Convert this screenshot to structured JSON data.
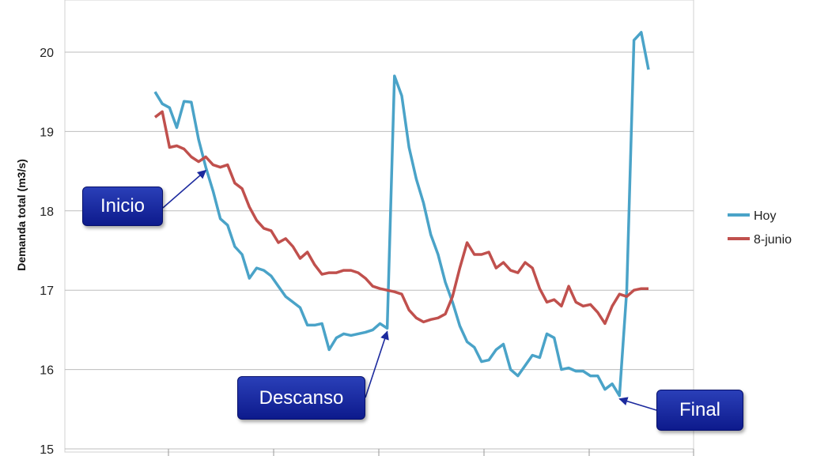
{
  "chart_data": {
    "type": "line",
    "ylabel": "Demanda total (m3/s)",
    "xlabel": "",
    "ylim": [
      15,
      20.6
    ],
    "yticks": [
      15,
      16,
      17,
      18,
      19,
      20
    ],
    "grid": true,
    "legend_position": "right",
    "series": [
      {
        "name": "Hoy",
        "color": "#4aa3c8",
        "values": [
          19.5,
          19.35,
          19.3,
          19.05,
          19.38,
          19.37,
          18.9,
          18.55,
          18.25,
          17.9,
          17.82,
          17.55,
          17.45,
          17.15,
          17.28,
          17.25,
          17.18,
          17.05,
          16.92,
          16.85,
          16.78,
          16.56,
          16.56,
          16.58,
          16.25,
          16.4,
          16.45,
          16.43,
          16.45,
          16.47,
          16.5,
          16.58,
          16.52,
          19.7,
          19.45,
          18.8,
          18.4,
          18.1,
          17.7,
          17.45,
          17.1,
          16.85,
          16.55,
          16.35,
          16.28,
          16.1,
          16.12,
          16.25,
          16.32,
          16.0,
          15.92,
          16.05,
          16.18,
          16.15,
          16.45,
          16.4,
          16.0,
          16.02,
          15.98,
          15.98,
          15.92,
          15.92,
          15.75,
          15.82,
          15.67,
          17.0,
          20.15,
          20.25,
          19.78
        ]
      },
      {
        "name": "8-junio",
        "color": "#c0504d",
        "values": [
          19.18,
          19.25,
          18.8,
          18.82,
          18.78,
          18.68,
          18.62,
          18.68,
          18.58,
          18.55,
          18.58,
          18.35,
          18.28,
          18.05,
          17.88,
          17.78,
          17.75,
          17.6,
          17.65,
          17.55,
          17.4,
          17.48,
          17.32,
          17.2,
          17.22,
          17.22,
          17.25,
          17.25,
          17.22,
          17.15,
          17.05,
          17.02,
          17.0,
          16.98,
          16.95,
          16.75,
          16.65,
          16.6,
          16.63,
          16.65,
          16.7,
          16.92,
          17.28,
          17.6,
          17.45,
          17.45,
          17.48,
          17.28,
          17.35,
          17.25,
          17.22,
          17.35,
          17.28,
          17.02,
          16.85,
          16.88,
          16.8,
          17.05,
          16.85,
          16.8,
          16.82,
          16.72,
          16.58,
          16.8,
          16.95,
          16.92,
          17.0,
          17.02,
          17.02
        ]
      }
    ],
    "annotations": [
      {
        "label": "Inicio",
        "point_index": 7,
        "series": "Hoy"
      },
      {
        "label": "Descanso",
        "point_index": 32,
        "series": "Hoy"
      },
      {
        "label": "Final",
        "point_index": 64,
        "series": "Hoy"
      }
    ]
  }
}
